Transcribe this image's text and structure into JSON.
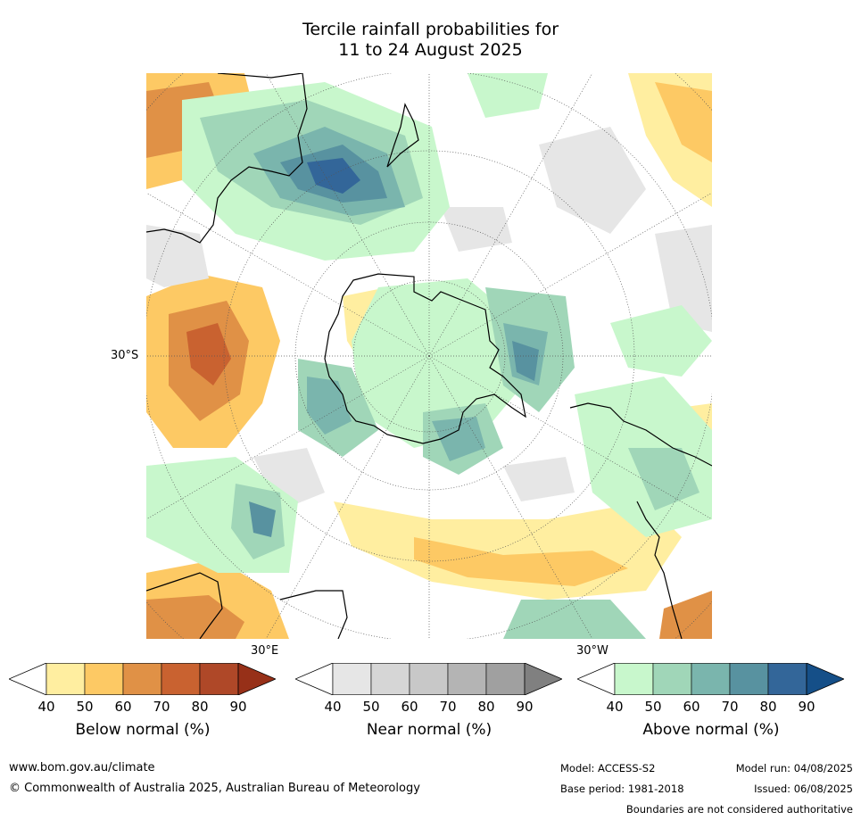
{
  "title": {
    "line1": "Tercile rainfall probabilities for",
    "line2": "11 to 24 August 2025"
  },
  "map": {
    "lat_label": "30°S",
    "lon_label_e": "30°E",
    "lon_label_w": "30°W",
    "colors": {
      "land": "#000000",
      "grid": "#555555"
    }
  },
  "colorbars": [
    {
      "name": "Below normal (%)",
      "ticks": [
        "40",
        "50",
        "60",
        "70",
        "80",
        "90"
      ],
      "colors": [
        "#ffeea0",
        "#fdc964",
        "#e09146",
        "#c96230",
        "#af4828",
        "#973018"
      ]
    },
    {
      "name": "Near normal (%)",
      "ticks": [
        "40",
        "50",
        "60",
        "70",
        "80",
        "90"
      ],
      "colors": [
        "#e6e6e6",
        "#d6d6d6",
        "#c8c8c8",
        "#b4b4b4",
        "#a0a0a0",
        "#808080"
      ]
    },
    {
      "name": "Above normal (%)",
      "ticks": [
        "40",
        "50",
        "60",
        "70",
        "80",
        "90"
      ],
      "colors": [
        "#c8f7cc",
        "#a0d6b8",
        "#7ab5ad",
        "#5892a0",
        "#336699",
        "#154f88"
      ]
    }
  ],
  "footer": {
    "url": "www.bom.gov.au/climate",
    "copyright": "© Commonwealth of Australia 2025, Australian Bureau of Meteorology",
    "model": "Model: ACCESS-S2",
    "model_run": "Model run: 04/08/2025",
    "base_period": "Base period: 1981-2018",
    "issued": "Issued: 06/08/2025",
    "disclaimer": "Boundaries are not considered authoritative"
  }
}
